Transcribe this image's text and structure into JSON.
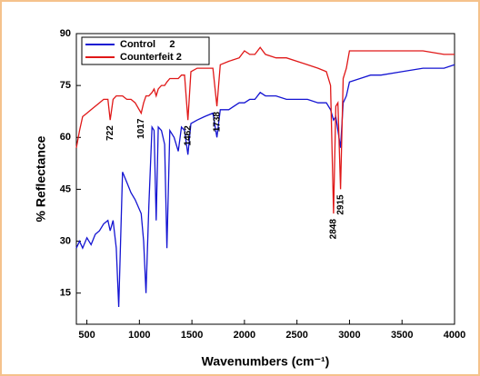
{
  "chart_data": {
    "type": "line",
    "x_label": "Wavenumbers (cm⁻¹)",
    "y_label": "% Reflectance",
    "x": [
      400,
      430,
      460,
      500,
      540,
      580,
      620,
      660,
      700,
      722,
      750,
      780,
      803,
      840,
      880,
      920,
      960,
      1017,
      1040,
      1063,
      1090,
      1120,
      1140,
      1160,
      1180,
      1210,
      1240,
      1262,
      1290,
      1330,
      1370,
      1400,
      1430,
      1462,
      1490,
      1550,
      1620,
      1700,
      1738,
      1770,
      1850,
      1950,
      2000,
      2050,
      2100,
      2150,
      2200,
      2300,
      2400,
      2500,
      2600,
      2700,
      2780,
      2820,
      2848,
      2870,
      2890,
      2915,
      2940,
      2970,
      3000,
      3100,
      3200,
      3300,
      3500,
      3700,
      3900,
      4000
    ],
    "series": [
      {
        "name": "Control     2",
        "color": "#1414d2",
        "values": [
          28,
          30,
          28,
          31,
          29,
          32,
          33,
          35,
          36,
          33,
          36,
          28,
          11,
          50,
          47,
          44,
          42,
          38,
          30,
          15,
          40,
          63,
          62,
          36,
          63,
          62,
          58,
          28,
          62,
          60,
          56,
          63,
          62,
          55,
          64,
          65,
          66,
          67,
          60,
          68,
          68,
          70,
          70,
          71,
          71,
          73,
          72,
          72,
          71,
          71,
          71,
          70,
          70,
          68,
          65,
          66,
          62,
          57,
          70,
          72,
          76,
          77,
          78,
          78,
          79,
          80,
          80,
          81
        ]
      },
      {
        "name": "Counterfeit 2",
        "color": "#e01818",
        "values": [
          57,
          62,
          66,
          67,
          68,
          69,
          70,
          71,
          71,
          65,
          71,
          72,
          72,
          72,
          71,
          71,
          70,
          67,
          70,
          72,
          72,
          73,
          74,
          72,
          74,
          75,
          75,
          76,
          77,
          77,
          77,
          78,
          78,
          65,
          79,
          80,
          80,
          80,
          69,
          81,
          82,
          83,
          85,
          84,
          84,
          86,
          84,
          83,
          83,
          82,
          81,
          80,
          79,
          75,
          38,
          69,
          70,
          45,
          77,
          80,
          85,
          85,
          85,
          85,
          85,
          85,
          84,
          84
        ]
      }
    ],
    "annotations": [
      {
        "text": "722",
        "x": 722
      },
      {
        "text": "1017",
        "x": 1017
      },
      {
        "text": "1462",
        "x": 1462
      },
      {
        "text": "1738",
        "x": 1738
      },
      {
        "text": "2848",
        "x": 2848
      },
      {
        "text": "2915",
        "x": 2915
      }
    ],
    "xlim": [
      400,
      4000
    ],
    "xticks": [
      500,
      1000,
      1500,
      2000,
      2500,
      3000,
      3500,
      4000
    ],
    "ylim": [
      6,
      90
    ],
    "yticks": [
      15,
      30,
      45,
      60,
      75,
      90
    ],
    "legend": "upper-left"
  }
}
